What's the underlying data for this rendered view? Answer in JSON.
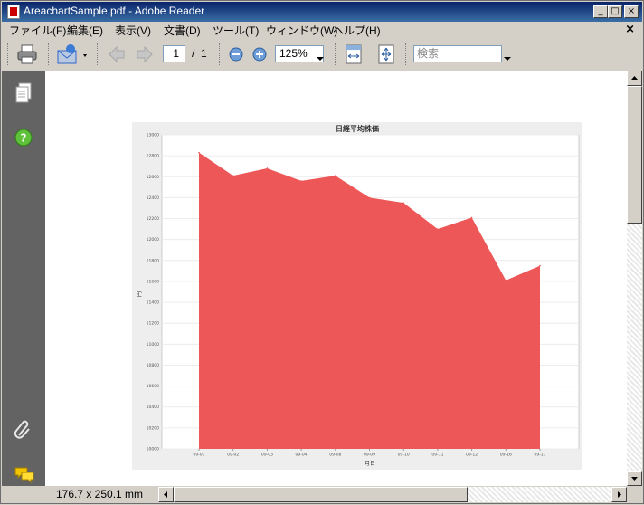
{
  "window": {
    "title": "AreachartSample.pdf - Adobe Reader"
  },
  "titlebar_buttons": {
    "minimize": "_",
    "maximize": "□",
    "close": "×"
  },
  "menu": {
    "items": [
      "ファイル(F)",
      "編集(E)",
      "表示(V)",
      "文書(D)",
      "ツール(T)",
      "ウィンドウ(W)",
      "ヘルプ(H)"
    ],
    "close": "×"
  },
  "toolbar": {
    "page_current": "1",
    "page_separator": "/",
    "page_total": "1",
    "zoom": "125%",
    "search_placeholder": "検索"
  },
  "status": {
    "page_size": "176.7 x 250.1 mm"
  },
  "icons": {
    "print": "print-icon",
    "email": "email-icon",
    "prev": "arrow-left-icon",
    "next": "arrow-right-icon",
    "zoom_out": "zoom-out-icon",
    "zoom_in": "zoom-in-icon",
    "fit_width": "fit-width-icon",
    "fit_page": "fit-page-icon",
    "pages": "pages-icon",
    "help": "help-icon",
    "attachment": "paperclip-icon",
    "comments": "comments-icon"
  },
  "colors": {
    "series": "#ee5757",
    "titlebar": "#0a246a",
    "sidebar": "#636363"
  },
  "chart_data": {
    "type": "area",
    "title": "日経平均株価",
    "xlabel": "月日",
    "ylabel": "円",
    "categories": [
      "09-01",
      "09-02",
      "09-03",
      "09-04",
      "09-08",
      "09-09",
      "09-10",
      "09-11",
      "09-12",
      "09-16",
      "09-17"
    ],
    "values": [
      12830,
      12610,
      12680,
      12560,
      12610,
      12400,
      12350,
      12100,
      12210,
      11610,
      11750
    ],
    "ylim": [
      10000,
      13000
    ],
    "yticks": [
      "10000",
      "10200",
      "10400",
      "10600",
      "10800",
      "11000",
      "11200",
      "11400",
      "11600",
      "11800",
      "12000",
      "12200",
      "12400",
      "12600",
      "12800",
      "13000"
    ],
    "grid": true,
    "legend": "none"
  }
}
